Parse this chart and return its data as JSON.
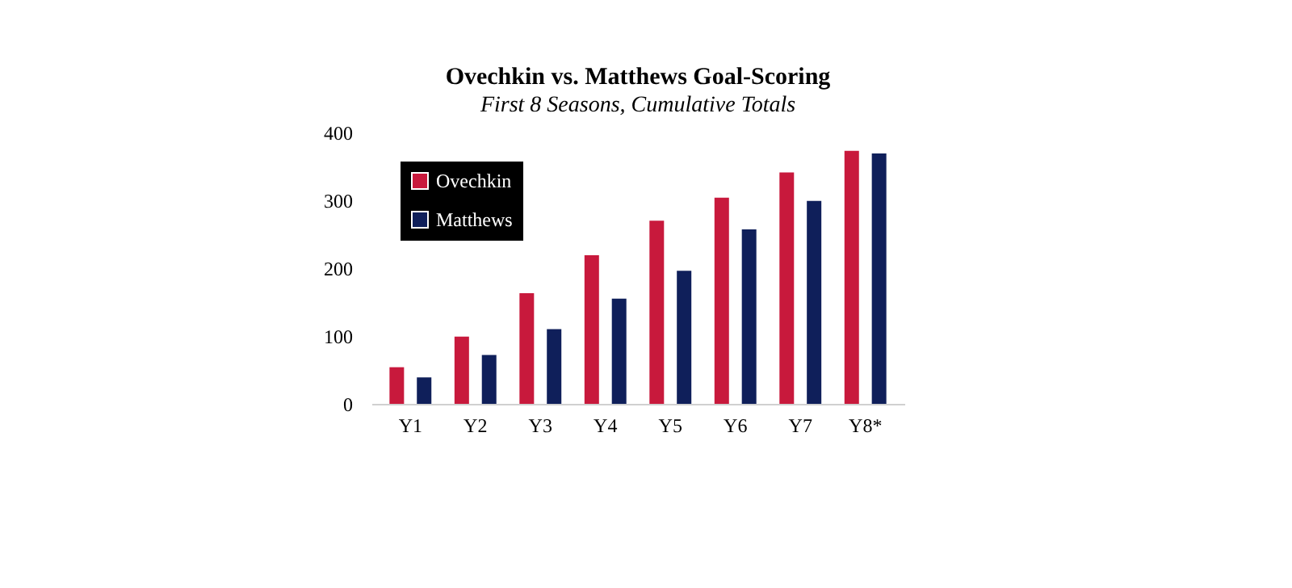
{
  "chart_data": {
    "type": "bar",
    "title": "Ovechkin vs. Matthews Goal-Scoring",
    "subtitle": "First 8 Seasons, Cumulative Totals",
    "categories": [
      "Y1",
      "Y2",
      "Y3",
      "Y4",
      "Y5",
      "Y6",
      "Y7",
      "Y8*"
    ],
    "series": [
      {
        "name": "Ovechkin",
        "color": "#c8193c",
        "values": [
          54,
          99,
          163,
          219,
          270,
          304,
          341,
          373
        ]
      },
      {
        "name": "Matthews",
        "color": "#0f1f5a",
        "values": [
          39,
          72,
          110,
          155,
          196,
          257,
          299,
          369
        ]
      }
    ],
    "ylim": [
      0,
      400
    ],
    "yticks": [
      0,
      100,
      200,
      300,
      400
    ],
    "grid": false,
    "legend": "top left"
  }
}
